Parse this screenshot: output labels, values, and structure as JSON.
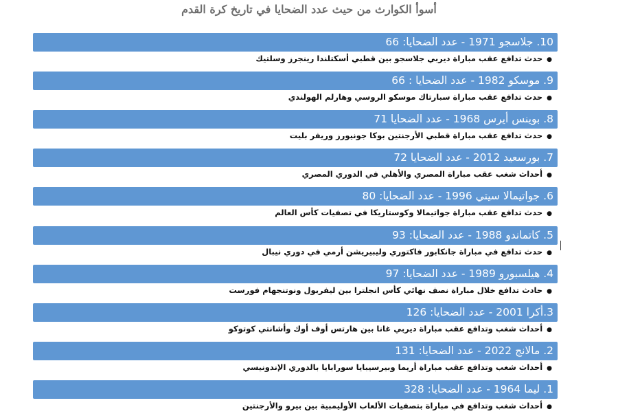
{
  "title": "أسوأ الكوارث من حيث عدد الضحايا في تاريخ كرة القدم",
  "items": [
    {
      "heading": "10. جلاسجو 1971 - عدد الضحايا: 66",
      "detail": "حدث تدافع عقب مباراة ديربي جلاسجو بين قطبي أسكتلندا رينجرز وسلتيك"
    },
    {
      "heading": "9. موسكو 1982 - عدد الضحايا : 66",
      "detail": "حدث تدافع عقب مباراة سبارتاك موسكو الروسي وهارلم الهولندي"
    },
    {
      "heading": "8. بوينس أيرس 1968 - عدد الضحايا 71",
      "detail": "حدث تدافع عقب مباراة قطبي الأرجنتين بوكا جونيورز وريفر بليت"
    },
    {
      "heading": "7. بورسعيد 2012 - عدد الضحايا 72",
      "detail": "أحداث شغب عقب مباراة المصري والأهلي في الدوري المصري"
    },
    {
      "heading": "6. جواتيمالا سيتي 1996 - عدد الضحايا: 80",
      "detail": "حدث تدافع عقب مباراة جواتيمالا وكوستاريكا في تصفيات كأس العالم"
    },
    {
      "heading": "5. كاتماندو 1988 - عدد الضحايا: 93",
      "detail": "حدث تدافع في مباراة جانكابور فاكتوري وليبيريشن أرمي في دوري نيبال"
    },
    {
      "heading": "4. هيلسبورو 1989 - عدد الضحايا: 97",
      "detail": "حادث تدافع خلال مباراة نصف نهائي كأس انجلترا بين ليفربول ونوتنجهام فورست"
    },
    {
      "heading": "3.أكرا 2001 - عدد الضحايا: 126",
      "detail": "أحداث شغب وتدافع عقب مباراة ديربي غانا بين هارتس أوف أوك وأشانتي كوتوكو"
    },
    {
      "heading": "2. مالانج 2022 - عدد الضحايا: 131",
      "detail": "أحداث شغب وتدافع عقب مباراة أريما وبيرسيبايا سورابايا بالدوري الإندونيسي"
    },
    {
      "heading": "1. ليما 1964 - عدد الضحايا: 328",
      "detail": "أحداث شغب وتدافع في مباراة بتصفيات الألعاب الأوليمبية بين بيرو والأرجنتين"
    }
  ],
  "colors": {
    "heading_bg": "#5f97d3",
    "heading_text": "#ffffff",
    "title_text": "#6d6d6d"
  }
}
